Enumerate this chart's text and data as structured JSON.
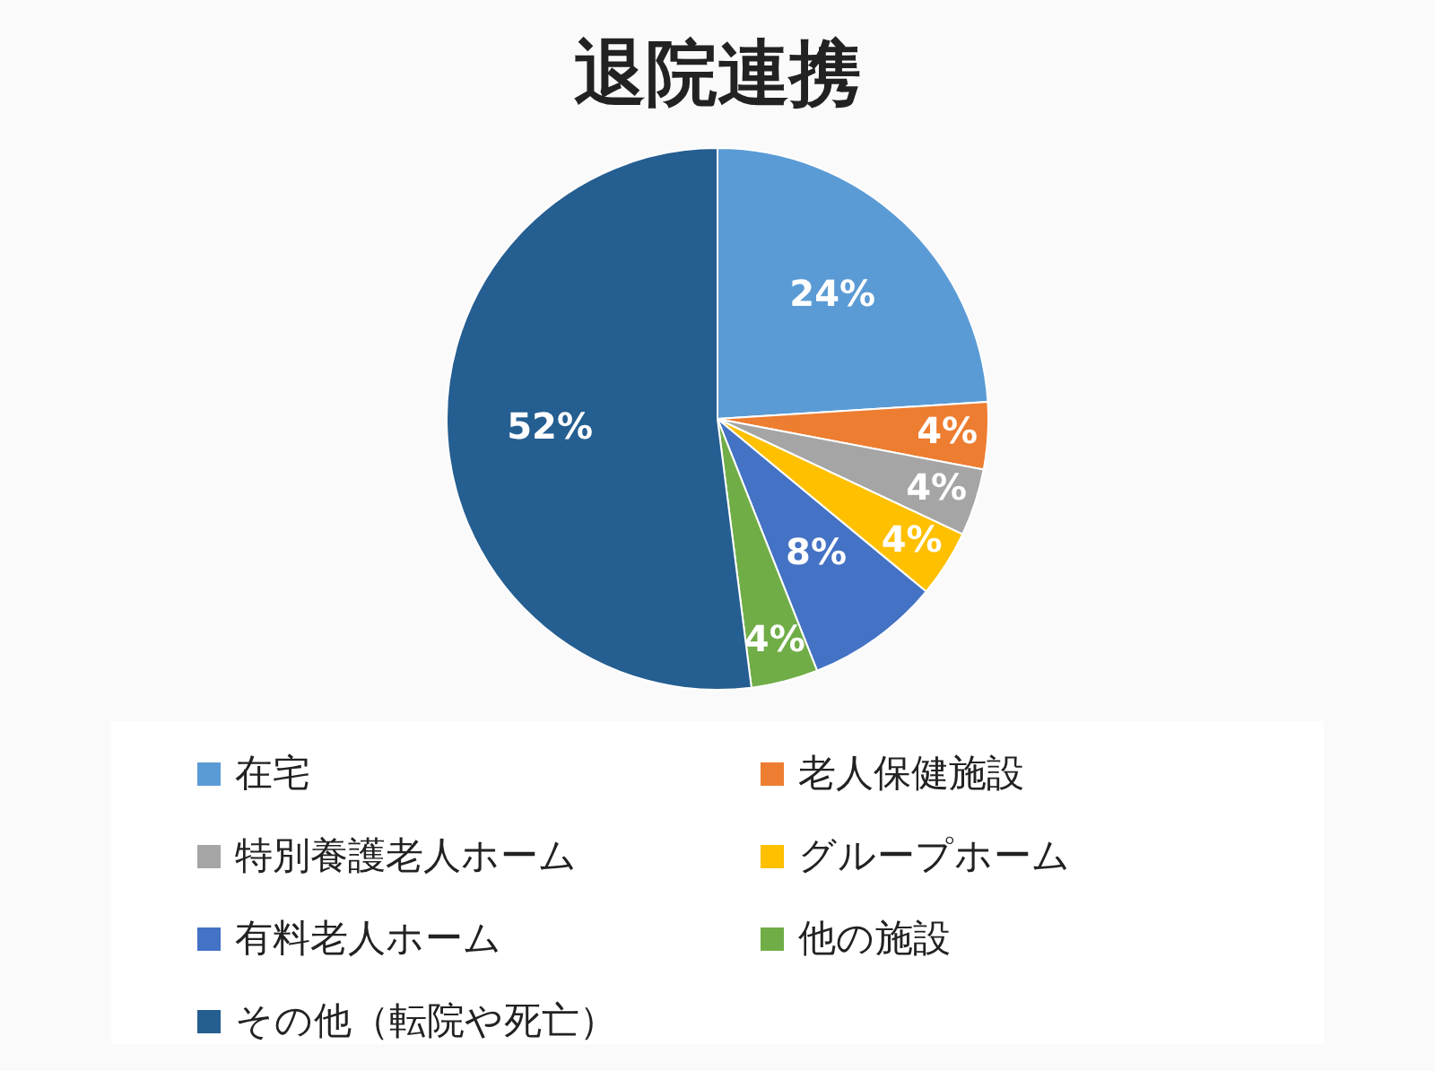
{
  "chart_data": {
    "type": "pie",
    "title": "退院連携",
    "categories": [
      "在宅",
      "老人保健施設",
      "特別養護老人ホーム",
      "グループホーム",
      "有料老人ホーム",
      "他の施設",
      "その他（転院や死亡）"
    ],
    "values": [
      24,
      4,
      4,
      4,
      8,
      4,
      52
    ],
    "colors": [
      "#5b9bd5",
      "#ed7d31",
      "#a5a5a5",
      "#ffc000",
      "#4472c4",
      "#70ad47",
      "#255e91"
    ],
    "value_labels": [
      "24%",
      "4%",
      "4%",
      "4%",
      "8%",
      "4%",
      "52%"
    ],
    "legend": "bottom"
  }
}
